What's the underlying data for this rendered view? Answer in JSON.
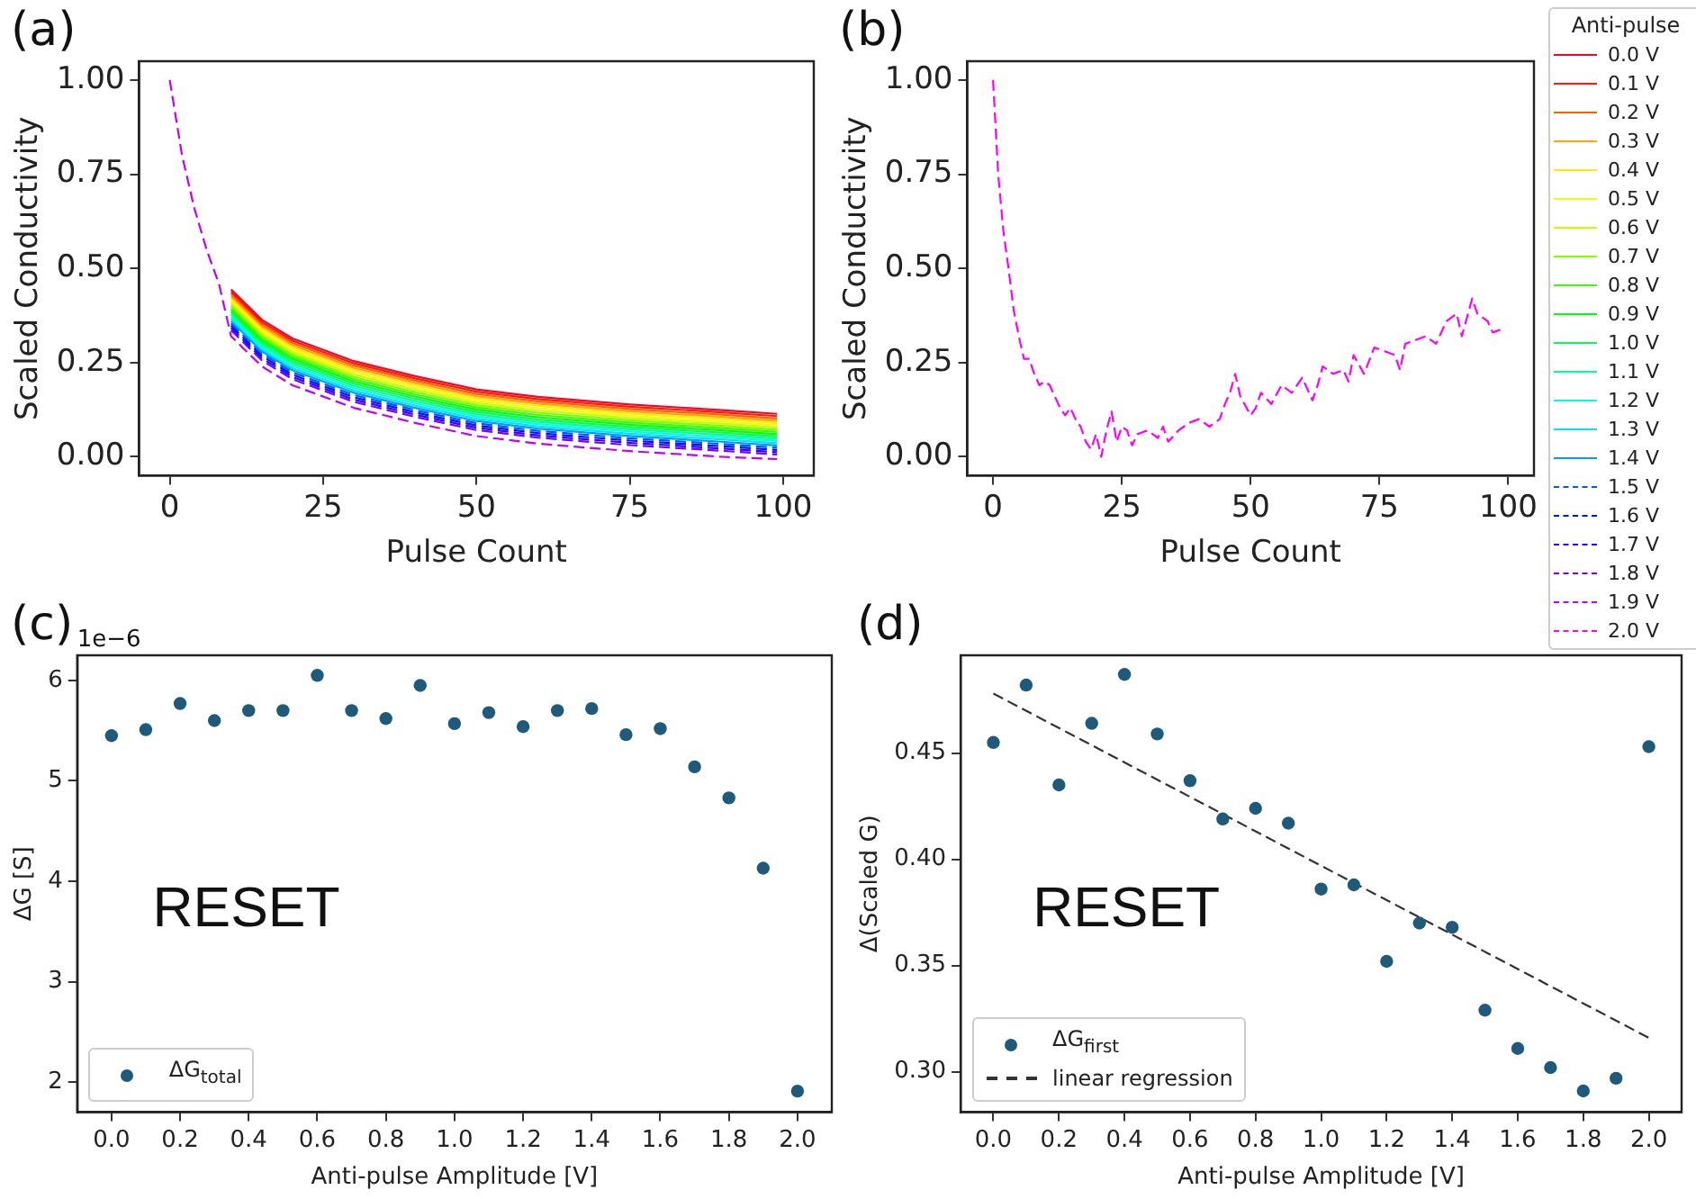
{
  "chart_data": [
    {
      "type": "line",
      "title": "(a)",
      "xlabel": "Pulse Count",
      "ylabel": "Scaled Conductivity",
      "x": [
        10,
        15,
        20,
        30,
        40,
        50,
        60,
        75,
        90,
        99
      ],
      "xlim": [
        -5,
        105
      ],
      "ylim": [
        -0.05,
        1.05
      ],
      "xticks": [
        0,
        25,
        50,
        75,
        100
      ],
      "yticks": [
        {
          "value": 0,
          "label": "0.00"
        },
        {
          "value": 0.25,
          "label": "0.25"
        },
        {
          "value": 0.5,
          "label": "0.50"
        },
        {
          "value": 0.75,
          "label": "0.75"
        },
        {
          "value": 1,
          "label": "1.00"
        }
      ],
      "grid": false,
      "legend": "right",
      "marker": "none",
      "series": [
        {
          "name": "0.0 V",
          "color": "#ff0028",
          "values": [
            0.444,
            0.364,
            0.314,
            0.254,
            0.214,
            0.179,
            0.159,
            0.139,
            0.124,
            0.114
          ]
        },
        {
          "name": "0.1 V",
          "color": "#ff1a00",
          "values": [
            0.438,
            0.358,
            0.308,
            0.248,
            0.208,
            0.173,
            0.153,
            0.133,
            0.118,
            0.108
          ]
        },
        {
          "name": "0.2 V",
          "color": "#ff6000",
          "values": [
            0.432,
            0.352,
            0.302,
            0.242,
            0.202,
            0.167,
            0.147,
            0.127,
            0.112,
            0.102
          ]
        },
        {
          "name": "0.3 V",
          "color": "#ffa500",
          "values": [
            0.426,
            0.346,
            0.296,
            0.236,
            0.196,
            0.161,
            0.141,
            0.121,
            0.106,
            0.096
          ]
        },
        {
          "name": "0.4 V",
          "color": "#ffea00",
          "values": [
            0.42,
            0.34,
            0.29,
            0.23,
            0.19,
            0.155,
            0.135,
            0.115,
            0.1,
            0.09
          ]
        },
        {
          "name": "0.5 V",
          "color": "#f0ff00",
          "values": [
            0.414,
            0.334,
            0.284,
            0.224,
            0.184,
            0.149,
            0.129,
            0.109,
            0.094,
            0.084
          ]
        },
        {
          "name": "0.6 V",
          "color": "#c8ff00",
          "values": [
            0.408,
            0.328,
            0.278,
            0.218,
            0.178,
            0.143,
            0.123,
            0.103,
            0.088,
            0.078
          ]
        },
        {
          "name": "0.7 V",
          "color": "#80ff00",
          "values": [
            0.402,
            0.322,
            0.272,
            0.212,
            0.172,
            0.137,
            0.117,
            0.097,
            0.082,
            0.072
          ]
        },
        {
          "name": "0.8 V",
          "color": "#3cff00",
          "values": [
            0.396,
            0.316,
            0.266,
            0.206,
            0.166,
            0.131,
            0.111,
            0.091,
            0.076,
            0.066
          ]
        },
        {
          "name": "0.9 V",
          "color": "#00ff0a",
          "values": [
            0.39,
            0.31,
            0.26,
            0.2,
            0.16,
            0.125,
            0.105,
            0.085,
            0.07,
            0.06
          ]
        },
        {
          "name": "1.0 V",
          "color": "#00ff4f",
          "values": [
            0.384,
            0.304,
            0.254,
            0.194,
            0.154,
            0.119,
            0.099,
            0.079,
            0.064,
            0.054
          ]
        },
        {
          "name": "1.1 V",
          "color": "#00ff94",
          "values": [
            0.378,
            0.298,
            0.248,
            0.188,
            0.148,
            0.113,
            0.093,
            0.073,
            0.058,
            0.048
          ]
        },
        {
          "name": "1.2 V",
          "color": "#00ffd9",
          "values": [
            0.372,
            0.292,
            0.242,
            0.182,
            0.142,
            0.107,
            0.087,
            0.067,
            0.052,
            0.042
          ]
        },
        {
          "name": "1.3 V",
          "color": "#00e0ff",
          "values": [
            0.366,
            0.286,
            0.236,
            0.176,
            0.136,
            0.101,
            0.081,
            0.061,
            0.046,
            0.036
          ]
        },
        {
          "name": "1.4 V",
          "color": "#009bff",
          "values": [
            0.36,
            0.28,
            0.23,
            0.17,
            0.13,
            0.095,
            0.075,
            0.055,
            0.04,
            0.03
          ]
        },
        {
          "name": "1.5 V",
          "color": "#0056ff",
          "line_style": "dashed",
          "values": [
            0.354,
            0.274,
            0.224,
            0.164,
            0.124,
            0.089,
            0.069,
            0.049,
            0.034,
            0.024
          ]
        },
        {
          "name": "1.6 V",
          "color": "#0011ff",
          "line_style": "dashed",
          "values": [
            0.348,
            0.268,
            0.218,
            0.158,
            0.118,
            0.083,
            0.063,
            0.043,
            0.028,
            0.018
          ]
        },
        {
          "name": "1.7 V",
          "color": "#3300ff",
          "line_style": "dashed",
          "values": [
            0.342,
            0.262,
            0.212,
            0.152,
            0.112,
            0.077,
            0.057,
            0.037,
            0.022,
            0.012
          ]
        },
        {
          "name": "1.8 V",
          "color": "#7800ff",
          "line_style": "dashed",
          "values": [
            0.336,
            0.256,
            0.206,
            0.146,
            0.106,
            0.071,
            0.051,
            0.031,
            0.016,
            0.006
          ]
        },
        {
          "name": "1.9 V",
          "color": "#bd00ff",
          "line_style": "dashed",
          "x": [
            0,
            2,
            4,
            6,
            8,
            10,
            15,
            20,
            30,
            40,
            50,
            60,
            75,
            90,
            99
          ],
          "values": [
            1.0,
            0.8,
            0.66,
            0.55,
            0.46,
            0.32,
            0.24,
            0.19,
            0.13,
            0.09,
            0.055,
            0.035,
            0.015,
            0.0,
            -0.006
          ]
        }
      ]
    },
    {
      "type": "line",
      "title": "(b)",
      "xlabel": "Pulse Count",
      "ylabel": "Scaled Conductivity",
      "legend_title": "Anti-pulse",
      "x": [
        0,
        1,
        2,
        3,
        4,
        5,
        6,
        7,
        8,
        9,
        10,
        11,
        12,
        13,
        14,
        15,
        16,
        17,
        18,
        19,
        20,
        21,
        22,
        23,
        24,
        25,
        26,
        27,
        28,
        30,
        32,
        33,
        34,
        36,
        38,
        40,
        42,
        44,
        45,
        46,
        47,
        48,
        50,
        51,
        52,
        54,
        56,
        58,
        60,
        62,
        63,
        64,
        66,
        68,
        69,
        70,
        72,
        74,
        76,
        78,
        79,
        80,
        82,
        84,
        86,
        88,
        90,
        91,
        93,
        94,
        96,
        97,
        99
      ],
      "xlim": [
        -5,
        105
      ],
      "ylim": [
        -0.05,
        1.05
      ],
      "xticks": [
        0,
        25,
        50,
        75,
        100
      ],
      "yticks": [
        {
          "value": 0,
          "label": "0.00"
        },
        {
          "value": 0.25,
          "label": "0.25"
        },
        {
          "value": 0.5,
          "label": "0.50"
        },
        {
          "value": 0.75,
          "label": "0.75"
        },
        {
          "value": 1,
          "label": "1.00"
        }
      ],
      "grid": false,
      "legend": "right",
      "marker": "none",
      "series": [
        {
          "name": "2.0 V",
          "color": "#ff00fd",
          "line_style": "dashed",
          "values": [
            1.0,
            0.75,
            0.6,
            0.5,
            0.39,
            0.32,
            0.26,
            0.26,
            0.22,
            0.19,
            0.2,
            0.19,
            0.16,
            0.13,
            0.11,
            0.13,
            0.1,
            0.08,
            0.04,
            0.02,
            0.06,
            0.0,
            0.07,
            0.12,
            0.04,
            0.08,
            0.07,
            0.03,
            0.06,
            0.07,
            0.05,
            0.08,
            0.04,
            0.07,
            0.09,
            0.1,
            0.08,
            0.1,
            0.14,
            0.17,
            0.22,
            0.16,
            0.11,
            0.13,
            0.17,
            0.14,
            0.19,
            0.17,
            0.21,
            0.15,
            0.19,
            0.24,
            0.22,
            0.23,
            0.2,
            0.27,
            0.22,
            0.29,
            0.28,
            0.27,
            0.23,
            0.3,
            0.31,
            0.32,
            0.3,
            0.36,
            0.38,
            0.32,
            0.42,
            0.38,
            0.36,
            0.33,
            0.34
          ]
        }
      ]
    },
    {
      "type": "scatter",
      "title": "(c)",
      "xlabel": "Anti-pulse Amplitude [V]",
      "ylabel": "ΔG [S]",
      "annotations": [
        "RESET",
        "1e−6"
      ],
      "x": [
        0,
        0.1,
        0.2,
        0.3,
        0.4,
        0.5,
        0.6,
        0.7,
        0.8,
        0.9,
        1.0,
        1.1,
        1.2,
        1.3,
        1.4,
        1.5,
        1.6,
        1.7,
        1.8,
        1.9,
        2.0
      ],
      "xlim": [
        -0.1,
        2.1
      ],
      "ylim": [
        1.7,
        6.25
      ],
      "xticks": [
        {
          "value": 0,
          "label": "0.0"
        },
        {
          "value": 0.2,
          "label": "0.2"
        },
        {
          "value": 0.4,
          "label": "0.4"
        },
        {
          "value": 0.6,
          "label": "0.6"
        },
        {
          "value": 0.8,
          "label": "0.8"
        },
        {
          "value": 1,
          "label": "1.0"
        },
        {
          "value": 1.2,
          "label": "1.2"
        },
        {
          "value": 1.4,
          "label": "1.4"
        },
        {
          "value": 1.6,
          "label": "1.6"
        },
        {
          "value": 1.8,
          "label": "1.8"
        },
        {
          "value": 2,
          "label": "2.0"
        }
      ],
      "yticks": [
        2,
        3,
        4,
        5,
        6
      ],
      "grid": false,
      "legend": "bottom left",
      "marker": "circle",
      "series": [
        {
          "name": "ΔG$_{total}$",
          "color": "#1f5a7a",
          "values": [
            5.45,
            5.51,
            5.77,
            5.6,
            5.7,
            5.7,
            6.05,
            5.7,
            5.62,
            5.95,
            5.57,
            5.68,
            5.54,
            5.7,
            5.72,
            5.46,
            5.52,
            5.14,
            4.83,
            4.13,
            1.91
          ]
        }
      ]
    },
    {
      "type": "scatter",
      "title": "(d)",
      "xlabel": "Anti-pulse Amplitude [V]",
      "ylabel": "Δ(Scaled G)",
      "annotations": [
        "RESET"
      ],
      "x": [
        0,
        0.1,
        0.2,
        0.3,
        0.4,
        0.5,
        0.6,
        0.7,
        0.8,
        0.9,
        1.0,
        1.1,
        1.2,
        1.3,
        1.4,
        1.5,
        1.6,
        1.7,
        1.8,
        1.9,
        2.0
      ],
      "xlim": [
        -0.1,
        2.1
      ],
      "ylim": [
        0.281,
        0.496
      ],
      "xticks": [
        {
          "value": 0,
          "label": "0.0"
        },
        {
          "value": 0.2,
          "label": "0.2"
        },
        {
          "value": 0.4,
          "label": "0.4"
        },
        {
          "value": 0.6,
          "label": "0.6"
        },
        {
          "value": 0.8,
          "label": "0.8"
        },
        {
          "value": 1,
          "label": "1.0"
        },
        {
          "value": 1.2,
          "label": "1.2"
        },
        {
          "value": 1.4,
          "label": "1.4"
        },
        {
          "value": 1.6,
          "label": "1.6"
        },
        {
          "value": 1.8,
          "label": "1.8"
        },
        {
          "value": 2,
          "label": "2.0"
        }
      ],
      "yticks": [
        {
          "value": 0.3,
          "label": "0.30"
        },
        {
          "value": 0.35,
          "label": "0.35"
        },
        {
          "value": 0.4,
          "label": "0.40"
        },
        {
          "value": 0.45,
          "label": "0.45"
        }
      ],
      "grid": false,
      "legend": "bottom left",
      "marker": "circle",
      "series": [
        {
          "name": "ΔG$_{first}$",
          "color": "#1f5a7a",
          "values": [
            0.455,
            0.482,
            0.435,
            0.464,
            0.487,
            0.459,
            0.437,
            0.419,
            0.424,
            0.417,
            0.386,
            0.388,
            0.352,
            0.37,
            0.368,
            0.329,
            0.311,
            0.302,
            0.291,
            0.297,
            0.453
          ]
        },
        {
          "name": "linear regression",
          "type": "line",
          "color": "#333333",
          "line_style": "dashed",
          "marker": "none",
          "x": [
            0,
            2
          ],
          "values": [
            0.478,
            0.316
          ]
        }
      ]
    }
  ]
}
